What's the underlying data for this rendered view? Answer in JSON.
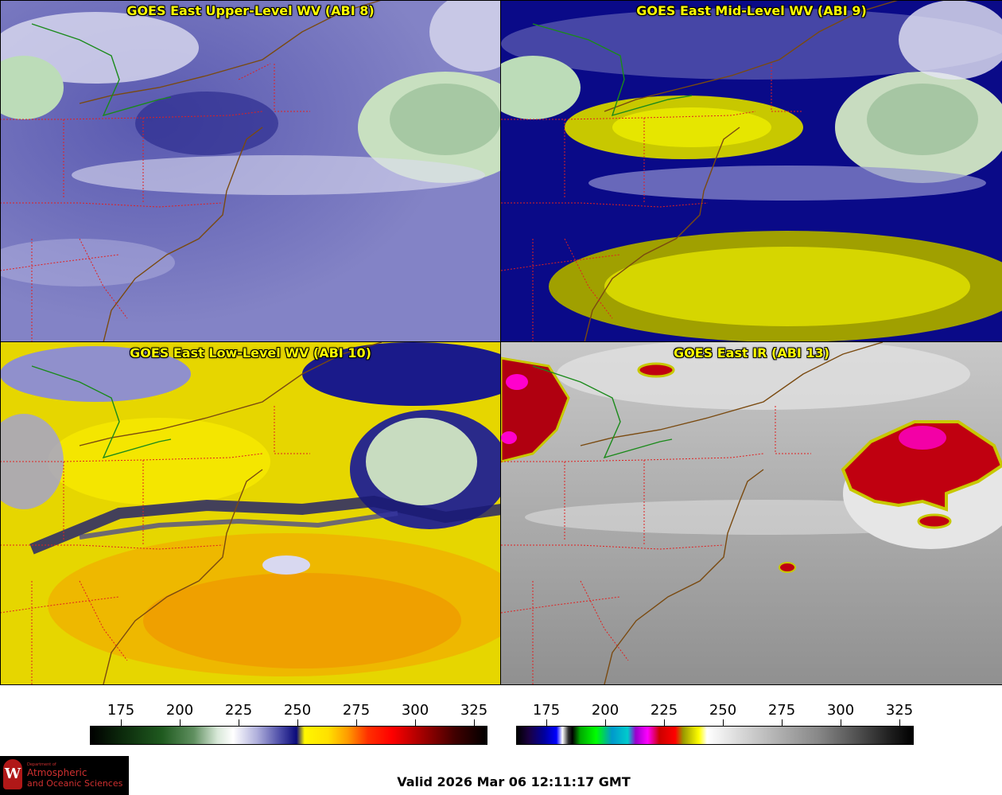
{
  "panels": [
    {
      "id": "p1",
      "title": "GOES East Upper-Level WV (ABI 8)",
      "palette": "wv_upper"
    },
    {
      "id": "p2",
      "title": "GOES East Mid-Level WV (ABI 9)",
      "palette": "wv_mid"
    },
    {
      "id": "p3",
      "title": "GOES East Low-Level WV (ABI 10)",
      "palette": "wv_low"
    },
    {
      "id": "p4",
      "title": "GOES East IR (ABI 13)",
      "palette": "ir"
    }
  ],
  "colorbars": [
    {
      "id": "wv",
      "ticks": [
        "175",
        "200",
        "225",
        "250",
        "275",
        "300",
        "325"
      ]
    },
    {
      "id": "ir",
      "ticks": [
        "175",
        "200",
        "225",
        "250",
        "275",
        "300",
        "325"
      ]
    }
  ],
  "valid_time": "Valid 2026 Mar 06 12:11:17 GMT",
  "logo": {
    "line_small": "Department of",
    "line1": "Atmospheric",
    "line2": "and Oceanic Sciences"
  },
  "colors": {
    "title_text": "#ffff00",
    "state_borders": "#e02020",
    "coastline": "#7a4a10",
    "border_line": "#1a8a1a"
  }
}
